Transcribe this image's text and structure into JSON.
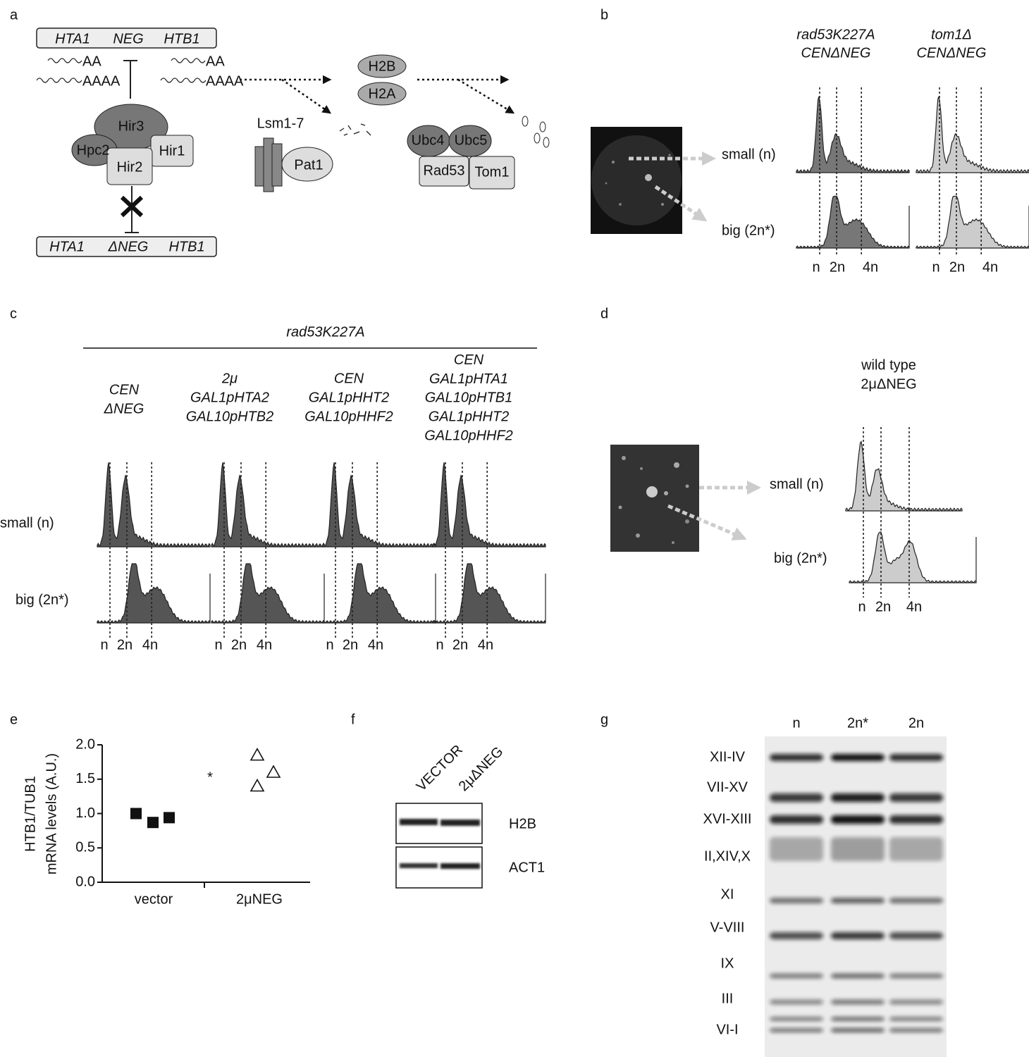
{
  "panel_labels": [
    "a",
    "b",
    "c",
    "d",
    "e",
    "f",
    "g"
  ],
  "panel_a": {
    "top_gene": [
      "HTA1",
      "NEG",
      "HTB1"
    ],
    "bottom_gene": [
      "HTA1",
      "ΔNEG",
      "HTB1"
    ],
    "transcripts": [
      "AA",
      "AAAA",
      "AA",
      "AAAA"
    ],
    "complex": [
      "Hir3",
      "Hpc2",
      "Hir1",
      "Hir2"
    ],
    "lsm": "Lsm1-7",
    "pat1": "Pat1",
    "histones": [
      "H2B",
      "H2A"
    ],
    "ubc": [
      "Ubc4",
      "Ubc5"
    ],
    "ligases": [
      "Rad53",
      "Tom1"
    ]
  },
  "panel_b": {
    "strains": [
      [
        "rad53K227A",
        "CENΔNEG"
      ],
      [
        "tom1Δ",
        "CENΔNEG"
      ]
    ],
    "rows": [
      "small (n)",
      "big (2n*)"
    ],
    "ploidy": [
      "n",
      "2n",
      "4n"
    ]
  },
  "panel_c": {
    "title": "rad53K227A",
    "columns": [
      [
        "CEN",
        "ΔNEG"
      ],
      [
        "2μ",
        "GAL1pHTA2",
        "GAL10pHTB2"
      ],
      [
        "CEN",
        "GAL1pHHT2",
        "GAL10pHHF2"
      ],
      [
        "CEN",
        "GAL1pHTA1",
        "GAL10pHTB1",
        "GAL1pHHT2",
        "GAL10pHHF2"
      ]
    ],
    "rows": [
      "small (n)",
      "big (2n*)"
    ],
    "ploidy": [
      "n",
      "2n",
      "4n"
    ]
  },
  "panel_d": {
    "strain": [
      "wild type",
      "2μΔNEG"
    ],
    "rows": [
      "small (n)",
      "big (2n*)"
    ],
    "ploidy": [
      "n",
      "2n",
      "4n"
    ]
  },
  "chart_data": {
    "type": "scatter",
    "ylabel": [
      "HTB1/TUB1",
      "mRNA levels (A.U.)"
    ],
    "categories": [
      "vector",
      "2μNEG"
    ],
    "values": [
      [
        1.0,
        0.87,
        0.94
      ],
      [
        1.85,
        1.4,
        1.6
      ]
    ],
    "markers": [
      "filled-square",
      "open-triangle"
    ],
    "ylim": [
      0,
      2.0
    ],
    "yticks": [
      {
        "value": 0,
        "label": "0.0"
      },
      0.5,
      {
        "value": 1,
        "label": "1.0"
      },
      1.5,
      {
        "value": 2,
        "label": "2.0"
      }
    ],
    "annotation": "*"
  },
  "panel_f": {
    "lanes": [
      "VECTOR",
      "2μΔNEG"
    ],
    "blots": [
      "H2B",
      "ACT1"
    ]
  },
  "panel_g": {
    "lanes": [
      "n",
      "2n*",
      "2n"
    ],
    "bands": [
      "XII-IV",
      "VII-XV",
      "XVI-XIII",
      "II,XIV,X",
      "XI",
      "V-VIII",
      "IX",
      "III",
      "VI-I"
    ]
  }
}
